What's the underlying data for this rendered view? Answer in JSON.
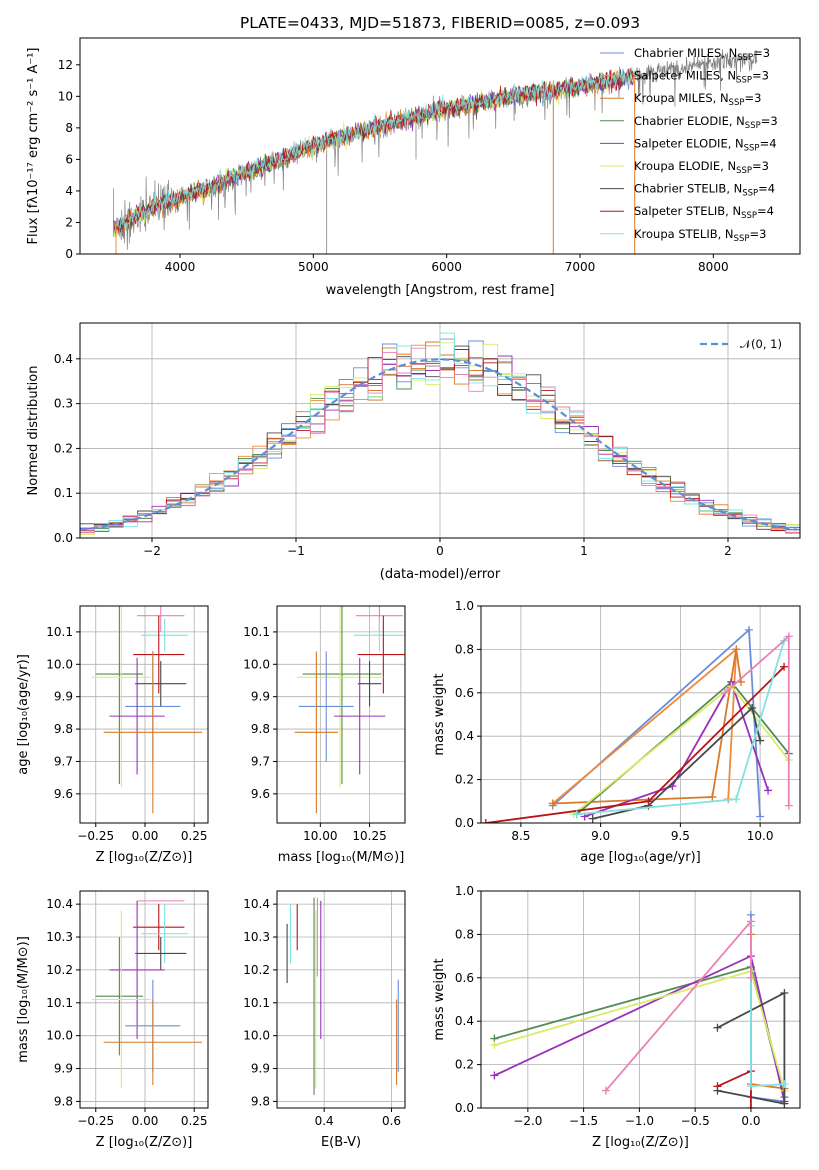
{
  "colors": {
    "Chabrier MILES": "#6a8fd8",
    "Salpeter MILES": "#ee8a3c",
    "Kroupa MILES": "#d87a28",
    "Chabrier ELODIE": "#548a54",
    "Salpeter ELODIE": "#9b30b8",
    "Kroupa ELODIE": "#d8ec6a",
    "Chabrier STELIB": "#484848",
    "Salpeter STELIB": "#b8141a",
    "Kroupa STELIB": "#80e2e2",
    "pink": "#e882b4",
    "data_spectrum": "#808080",
    "normal_curve": "#5b8fd6"
  },
  "chart_data": [
    {
      "type": "line",
      "id": "spectrum",
      "title": "PLATE=0433, MJD=51873, FIBERID=0085, z=0.093",
      "xlabel": "wavelength [Angstrom, rest frame]",
      "ylabel": "Flux [fλ10⁻¹⁷ erg cm⁻² s⁻¹ A⁻¹]",
      "xlim": [
        3250,
        8650
      ],
      "ylim": [
        0,
        13.7
      ],
      "xticks": [
        "4000",
        "5000",
        "6000",
        "7000",
        "8000"
      ],
      "yticks": [
        "0",
        "2",
        "4",
        "6",
        "8",
        "10",
        "12"
      ],
      "legend_position": "top-right",
      "legend": [
        "Chabrier MILES, N_SSP=3",
        "Salpeter MILES, N_SSP=3",
        "Kroupa MILES, N_SSP=3",
        "Chabrier ELODIE, N_SSP=3",
        "Salpeter ELODIE, N_SSP=4",
        "Kroupa ELODIE, N_SSP=3",
        "Chabrier STELIB, N_SSP=4",
        "Salpeter STELIB, N_SSP=4",
        "Kroupa STELIB, N_SSP=3"
      ],
      "continuum": {
        "wavelength": [
          3500,
          3600,
          3700,
          3800,
          3900,
          4000,
          4200,
          4500,
          4800,
          5000,
          5300,
          5600,
          6000,
          6500,
          7000,
          7500,
          8000,
          8200
        ],
        "flux": [
          1.6,
          2.0,
          2.5,
          3.0,
          3.3,
          3.6,
          4.1,
          5.2,
          6.2,
          6.9,
          7.6,
          8.3,
          9.2,
          10.0,
          10.6,
          11.4,
          12.2,
          12.4
        ]
      },
      "absorption_lines": [
        {
          "wavelength": 5100,
          "depth_to": 0.0
        },
        {
          "wavelength": 6800,
          "depth_to": 0.0
        },
        {
          "wavelength": 7410,
          "depth_to": 0.0
        },
        {
          "wavelength": 5770,
          "depth_to": 6.0
        }
      ],
      "grid": false
    },
    {
      "type": "histogram",
      "id": "residuals",
      "xlabel": "(data-model)/error",
      "ylabel": "Normed distribution",
      "xlim": [
        -2.5,
        2.5
      ],
      "ylim": [
        0,
        0.48
      ],
      "xticks": [
        "−2",
        "−1",
        "0",
        "1",
        "2"
      ],
      "yticks": [
        "0.0",
        "0.1",
        "0.2",
        "0.3",
        "0.4"
      ],
      "legend": [
        "𝒩(0, 1)"
      ],
      "legend_position": "top-right",
      "bin_width": 0.1,
      "grid": true
    },
    {
      "type": "scatter",
      "id": "age_vs_Z",
      "xlabel": "Z [log₁₀(Z/Z⊙)]",
      "ylabel": "age [log₁₀(age/yr)]",
      "xlim": [
        -0.33,
        0.32
      ],
      "ylim": [
        9.51,
        10.18
      ],
      "xticks": [
        "−0.25",
        "0.00",
        "0.25"
      ],
      "yticks": [
        "9.6",
        "9.7",
        "9.8",
        "9.9",
        "10.0",
        "10.1"
      ],
      "grid": true,
      "series": [
        {
          "color": "pink",
          "x": 0.08,
          "xerr": 0.12,
          "y": 10.15,
          "yerr": 0.05
        },
        {
          "color": "Kroupa STELIB",
          "x": 0.1,
          "xerr": 0.12,
          "y": 10.09,
          "yerr": 0.05
        },
        {
          "color": "Salpeter STELIB",
          "x": 0.07,
          "xerr": 0.13,
          "y": 10.03,
          "yerr": 0.12
        },
        {
          "color": "Chabrier ELODIE",
          "x": -0.13,
          "xerr": 0.12,
          "y": 9.97,
          "yerr": 0.34
        },
        {
          "color": "Kroupa ELODIE",
          "x": -0.12,
          "xerr": 0.15,
          "y": 9.96,
          "yerr": 0.34
        },
        {
          "color": "Chabrier STELIB",
          "x": 0.08,
          "xerr": 0.13,
          "y": 9.94,
          "yerr": 0.07
        },
        {
          "color": "Chabrier MILES",
          "x": 0.04,
          "xerr": 0.14,
          "y": 9.87,
          "yerr": 0.17
        },
        {
          "color": "Salpeter ELODIE",
          "x": -0.04,
          "xerr": 0.14,
          "y": 9.84,
          "yerr": 0.18
        },
        {
          "color": "Kroupa MILES",
          "x": 0.04,
          "xerr": 0.25,
          "y": 9.79,
          "yerr": 0.25
        }
      ]
    },
    {
      "type": "scatter",
      "id": "age_vs_mass",
      "xlabel": "mass [log₁₀(M/M⊙)]",
      "ylabel": "",
      "xlim": [
        9.78,
        10.43
      ],
      "ylim": [
        9.51,
        10.18
      ],
      "xticks": [
        "10.00",
        "10.25"
      ],
      "yticks": [
        "9.6",
        "9.7",
        "9.8",
        "9.9",
        "10.0",
        "10.1"
      ],
      "grid": true,
      "series": [
        {
          "color": "pink",
          "x": 10.3,
          "xerr": 0.12,
          "y": 10.15,
          "yerr": 0.05
        },
        {
          "color": "Kroupa STELIB",
          "x": 10.3,
          "xerr": 0.13,
          "y": 10.09,
          "yerr": 0.05
        },
        {
          "color": "Salpeter STELIB",
          "x": 10.32,
          "xerr": 0.13,
          "y": 10.03,
          "yerr": 0.12
        },
        {
          "color": "Chabrier ELODIE",
          "x": 10.11,
          "xerr": 0.2,
          "y": 9.97,
          "yerr": 0.34
        },
        {
          "color": "Kroupa ELODIE",
          "x": 10.1,
          "xerr": 0.22,
          "y": 9.96,
          "yerr": 0.34
        },
        {
          "color": "Chabrier STELIB",
          "x": 10.25,
          "xerr": 0.06,
          "y": 9.94,
          "yerr": 0.07
        },
        {
          "color": "Chabrier MILES",
          "x": 10.03,
          "xerr": 0.14,
          "y": 9.87,
          "yerr": 0.17
        },
        {
          "color": "Salpeter ELODIE",
          "x": 10.2,
          "xerr": 0.13,
          "y": 9.84,
          "yerr": 0.18
        },
        {
          "color": "Kroupa MILES",
          "x": 9.98,
          "xerr": 0.11,
          "y": 9.79,
          "yerr": 0.25
        }
      ]
    },
    {
      "type": "line",
      "id": "weight_vs_age",
      "xlabel": "age [log₁₀(age/yr)]",
      "ylabel": "mass weight",
      "xlim": [
        8.25,
        10.25
      ],
      "ylim": [
        0.0,
        1.0
      ],
      "xticks": [
        "8.5",
        "9.0",
        "9.5",
        "10.0"
      ],
      "yticks": [
        "0.0",
        "0.2",
        "0.4",
        "0.6",
        "0.8",
        "1.0"
      ],
      "grid": true,
      "series": [
        {
          "color": "Chabrier MILES",
          "x": [
            8.7,
            9.93,
            10.0
          ],
          "y": [
            0.08,
            0.89,
            0.03
          ]
        },
        {
          "color": "Salpeter MILES",
          "x": [
            8.7,
            9.85,
            9.8
          ],
          "y": [
            0.09,
            0.8,
            0.11
          ]
        },
        {
          "color": "Kroupa MILES",
          "x": [
            8.7,
            9.7,
            9.85,
            9.88
          ],
          "y": [
            0.09,
            0.12,
            0.8,
            0.65
          ]
        },
        {
          "color": "Chabrier ELODIE",
          "x": [
            8.85,
            9.82,
            10.18
          ],
          "y": [
            0.04,
            0.65,
            0.32
          ]
        },
        {
          "color": "Salpeter ELODIE",
          "x": [
            8.9,
            9.45,
            9.82,
            10.05
          ],
          "y": [
            0.03,
            0.17,
            0.65,
            0.15
          ]
        },
        {
          "color": "Kroupa ELODIE",
          "x": [
            8.83,
            9.82,
            10.18
          ],
          "y": [
            0.04,
            0.63,
            0.29
          ]
        },
        {
          "color": "Chabrier STELIB",
          "x": [
            8.95,
            9.3,
            9.95,
            10.0
          ],
          "y": [
            0.02,
            0.08,
            0.53,
            0.38
          ]
        },
        {
          "color": "Salpeter STELIB",
          "x": [
            8.28,
            9.3,
            10.15
          ],
          "y": [
            0.0,
            0.1,
            0.72
          ]
        },
        {
          "color": "Kroupa STELIB",
          "x": [
            8.85,
            9.85,
            10.15
          ],
          "y": [
            0.04,
            0.11,
            0.84
          ]
        },
        {
          "color": "pink",
          "x": [
            9.78,
            10.18,
            10.18
          ],
          "y": [
            0.6,
            0.86,
            0.08
          ]
        }
      ]
    },
    {
      "type": "scatter",
      "id": "mass_vs_Z",
      "xlabel": "Z [log₁₀(Z/Z⊙)]",
      "ylabel": "mass [log₁₀(M/M⊙)]",
      "xlim": [
        -0.33,
        0.32
      ],
      "ylim": [
        9.78,
        10.44
      ],
      "xticks": [
        "−0.25",
        "0.00",
        "0.25"
      ],
      "yticks": [
        "9.8",
        "9.9",
        "10.0",
        "10.1",
        "10.2",
        "10.3",
        "10.4"
      ],
      "grid": true,
      "series": [
        {
          "color": "pink",
          "x": 0.08,
          "xerr": 0.12,
          "y": 10.41,
          "yerr": 0.0
        },
        {
          "color": "Salpeter STELIB",
          "x": 0.07,
          "xerr": 0.13,
          "y": 10.33,
          "yerr": 0.07
        },
        {
          "color": "Kroupa STELIB",
          "x": 0.1,
          "xerr": 0.12,
          "y": 10.31,
          "yerr": 0.09
        },
        {
          "color": "Chabrier STELIB",
          "x": 0.08,
          "xerr": 0.13,
          "y": 10.25,
          "yerr": 0.05
        },
        {
          "color": "Salpeter ELODIE",
          "x": -0.04,
          "xerr": 0.14,
          "y": 10.2,
          "yerr": 0.21
        },
        {
          "color": "Chabrier ELODIE",
          "x": -0.13,
          "xerr": 0.12,
          "y": 10.12,
          "yerr": 0.18
        },
        {
          "color": "Kroupa ELODIE",
          "x": -0.12,
          "xerr": 0.15,
          "y": 10.11,
          "yerr": 0.27
        },
        {
          "color": "Chabrier MILES",
          "x": 0.04,
          "xerr": 0.14,
          "y": 10.03,
          "yerr": 0.14
        },
        {
          "color": "Kroupa MILES",
          "x": 0.04,
          "xerr": 0.25,
          "y": 9.98,
          "yerr": 0.13
        }
      ]
    },
    {
      "type": "scatter",
      "id": "mass_vs_EBV",
      "xlabel": "E(B-V)",
      "ylabel": "",
      "xlim": [
        0.26,
        0.64
      ],
      "ylim": [
        9.78,
        10.44
      ],
      "xticks": [
        "0.4",
        "0.6"
      ],
      "yticks": [
        "9.8",
        "9.9",
        "10.0",
        "10.1",
        "10.2",
        "10.3",
        "10.4"
      ],
      "grid": true,
      "series": [
        {
          "color": "Chabrier STELIB",
          "x": 0.29,
          "y": 10.25,
          "yerr": 0.09
        },
        {
          "color": "Kroupa STELIB",
          "x": 0.3,
          "y": 10.31,
          "yerr": 0.09
        },
        {
          "color": "Salpeter STELIB",
          "x": 0.32,
          "y": 10.33,
          "yerr": 0.07
        },
        {
          "color": "Chabrier ELODIE",
          "x": 0.37,
          "y": 10.12,
          "yerr": 0.3
        },
        {
          "color": "Kroupa ELODIE",
          "x": 0.375,
          "y": 10.11,
          "yerr": 0.27
        },
        {
          "color": "pink",
          "x": 0.38,
          "y": 10.3,
          "yerr": 0.12
        },
        {
          "color": "Salpeter ELODIE",
          "x": 0.39,
          "y": 10.2,
          "yerr": 0.21
        },
        {
          "color": "Kroupa MILES",
          "x": 0.615,
          "y": 9.98,
          "yerr": 0.13
        },
        {
          "color": "Chabrier MILES",
          "x": 0.62,
          "y": 10.03,
          "yerr": 0.14
        }
      ]
    },
    {
      "type": "line",
      "id": "weight_vs_Z",
      "xlabel": "Z [log₁₀(Z/Z⊙)]",
      "ylabel": "mass weight",
      "xlim": [
        -2.42,
        0.44
      ],
      "ylim": [
        0.0,
        1.0
      ],
      "xticks": [
        "−2.0",
        "−1.5",
        "−1.0",
        "−0.5",
        "0.0"
      ],
      "yticks": [
        "0.0",
        "0.2",
        "0.4",
        "0.6",
        "0.8",
        "1.0"
      ],
      "grid": true,
      "series": [
        {
          "color": "Chabrier MILES",
          "x": [
            0.0,
            0.0,
            0.3
          ],
          "y": [
            0.89,
            0.05,
            0.03
          ]
        },
        {
          "color": "Kroupa MILES",
          "x": [
            0.0,
            0.0,
            0.3
          ],
          "y": [
            0.8,
            0.11,
            0.09
          ]
        },
        {
          "color": "Chabrier ELODIE",
          "x": [
            -2.3,
            0.0,
            0.3
          ],
          "y": [
            0.32,
            0.65,
            0.05
          ]
        },
        {
          "color": "Salpeter ELODIE",
          "x": [
            -2.3,
            0.0,
            0.3
          ],
          "y": [
            0.15,
            0.7,
            0.03
          ]
        },
        {
          "color": "Kroupa ELODIE",
          "x": [
            -2.3,
            0.0,
            0.3
          ],
          "y": [
            0.29,
            0.63,
            0.08
          ]
        },
        {
          "color": "Chabrier STELIB",
          "x": [
            -0.3,
            0.3,
            0.3,
            -0.3
          ],
          "y": [
            0.37,
            0.53,
            0.02,
            0.08
          ]
        },
        {
          "color": "Salpeter STELIB",
          "x": [
            -0.3,
            0.0,
            0.0
          ],
          "y": [
            0.1,
            0.17,
            0.0
          ]
        },
        {
          "color": "Kroupa STELIB",
          "x": [
            0.0,
            0.0,
            0.3
          ],
          "y": [
            0.84,
            0.1,
            0.11
          ]
        },
        {
          "color": "pink",
          "x": [
            -1.3,
            0.0,
            0.0
          ],
          "y": [
            0.08,
            0.86,
            0.6
          ]
        }
      ]
    }
  ]
}
